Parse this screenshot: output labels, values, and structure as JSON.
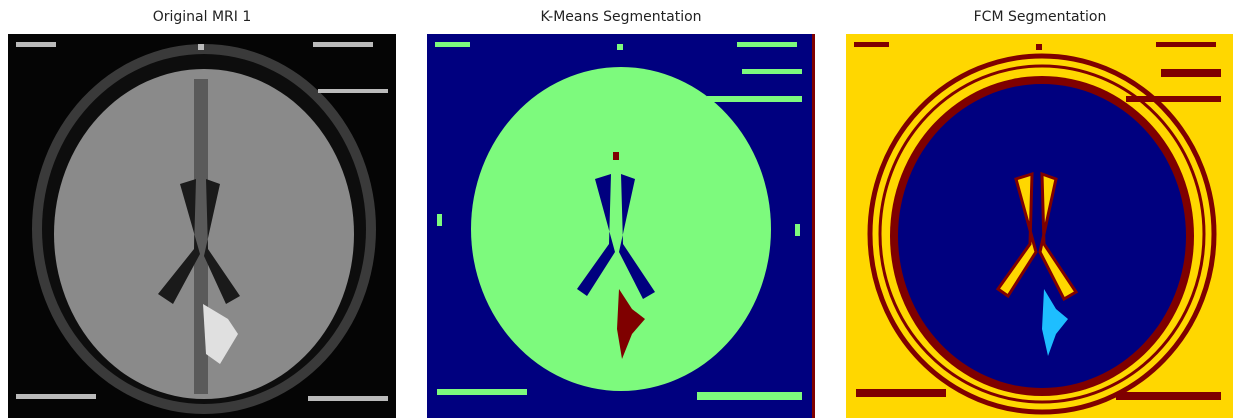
{
  "panels": [
    {
      "title": "Original MRI 1"
    },
    {
      "title": "K-Means Segmentation"
    },
    {
      "title": "FCM Segmentation"
    }
  ]
}
